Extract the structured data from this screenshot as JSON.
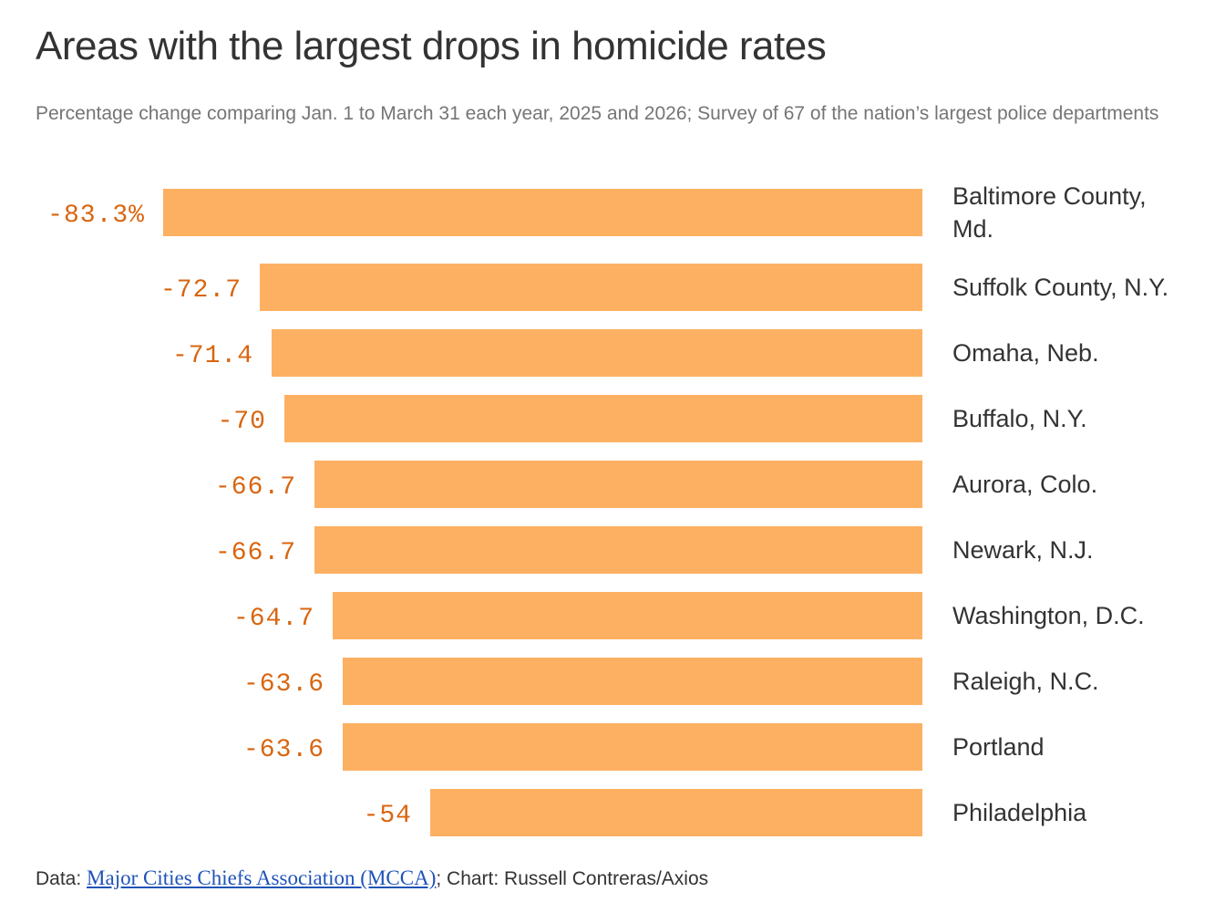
{
  "title": "Areas with the largest drops in homicide rates",
  "subtitle": "Percentage change comparing Jan. 1 to March 31 each year, 2025 and 2026; Survey of 67 of the nation’s largest police departments",
  "footer": {
    "data_prefix": "Data: ",
    "source_link": "Major Cities Chiefs Association (MCCA)",
    "suffix": "; Chart: Russell Contreras/Axios"
  },
  "colors": {
    "bar": "#fdb062",
    "value_label": "#d9650f",
    "text": "#333333",
    "link": "#1f53b8"
  },
  "chart_data": {
    "type": "bar",
    "orientation": "horizontal",
    "categories": [
      [
        "Baltimore County,",
        "Md."
      ],
      [
        "Suffolk County, N.Y."
      ],
      [
        "Omaha, Neb."
      ],
      [
        "Buffalo, N.Y."
      ],
      [
        "Aurora, Colo."
      ],
      [
        "Newark, N.J."
      ],
      [
        "Washington, D.C."
      ],
      [
        "Raleigh, N.C."
      ],
      [
        "Portland"
      ],
      [
        "Philadelphia"
      ]
    ],
    "values": [
      -83.3,
      -72.7,
      -71.4,
      -70,
      -66.7,
      -66.7,
      -64.7,
      -63.6,
      -63.6,
      -54
    ],
    "value_labels": [
      "-83.3%",
      "-72.7",
      "-71.4",
      "-70",
      "-66.7",
      "-66.7",
      "-64.7",
      "-63.6",
      "-63.6",
      "-54"
    ],
    "title": "Areas with the largest drops in homicide rates",
    "xlabel": "",
    "ylabel": "",
    "xlim": [
      -83.3,
      0
    ],
    "grid": false
  }
}
